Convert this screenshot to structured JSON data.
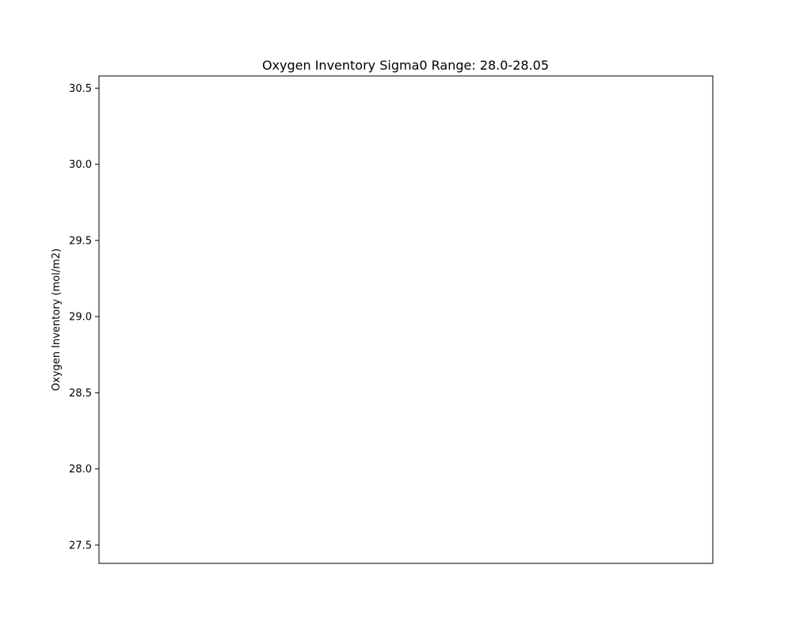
{
  "chart_data": {
    "type": "line",
    "title": "Oxygen Inventory Sigma0 Range: 28.0-28.05",
    "xlabel": "",
    "ylabel": "Oxygen Inventory (mol/m2)",
    "ylim": [
      27.38,
      30.58
    ],
    "yticks": [
      "27.5",
      "28.0",
      "28.5",
      "29.0",
      "29.5",
      "30.0",
      "30.5"
    ],
    "x_ticks_visible": false,
    "grid": false,
    "series": []
  }
}
